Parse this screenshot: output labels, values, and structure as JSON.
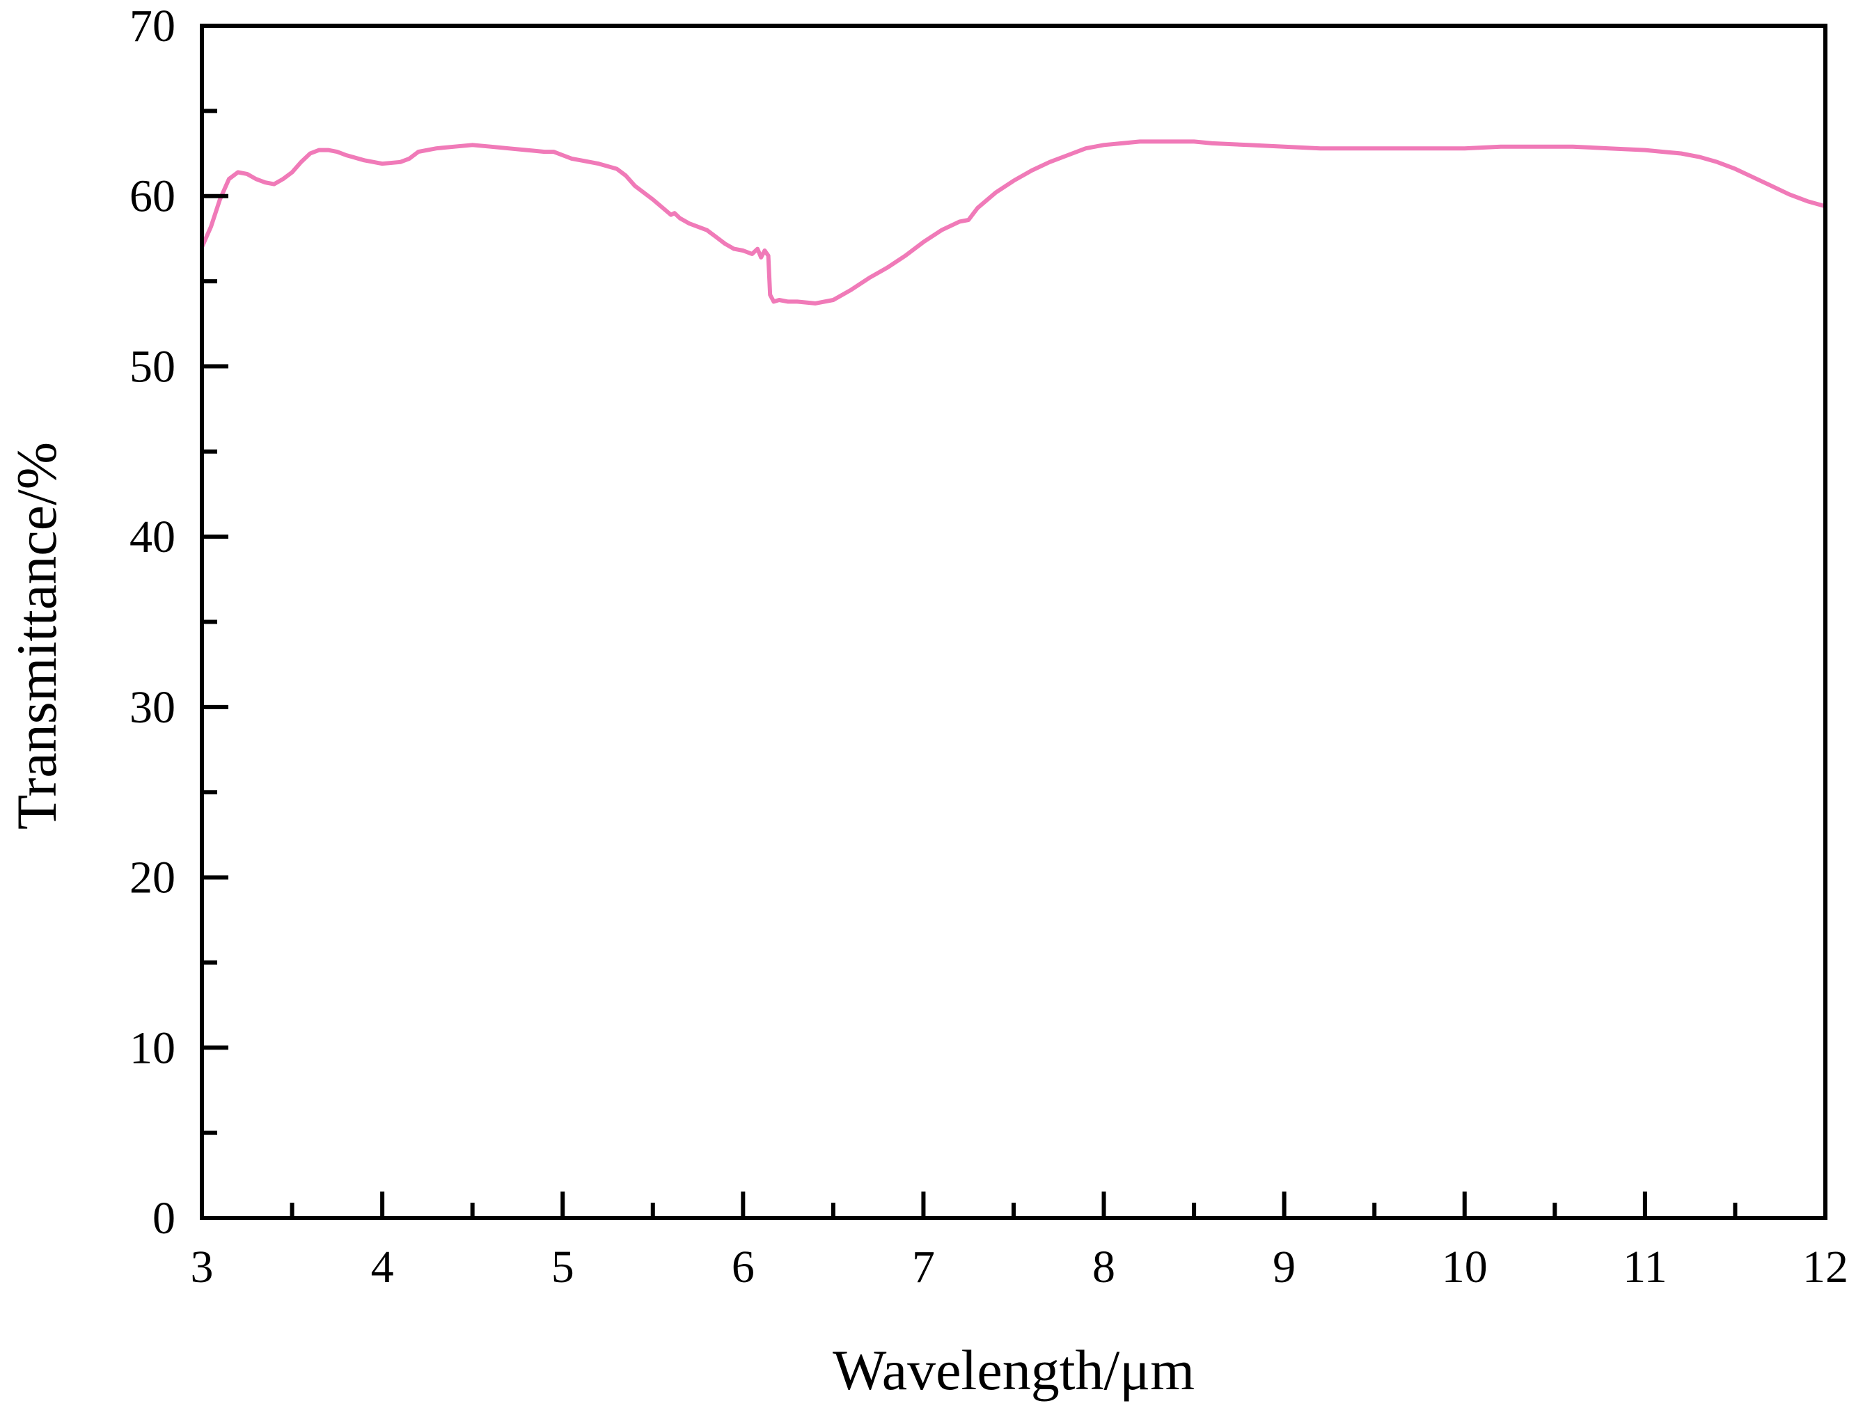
{
  "chart_data": {
    "type": "line",
    "title": "",
    "xlabel": "Wavelength/μm",
    "ylabel": "Transmittance/%",
    "xlim": [
      3,
      12
    ],
    "ylim": [
      0,
      70
    ],
    "x_ticks": [
      3,
      4,
      5,
      6,
      7,
      8,
      9,
      10,
      11,
      12
    ],
    "y_ticks": [
      0,
      10,
      20,
      30,
      40,
      50,
      60,
      70
    ],
    "x_tick_labels": [
      "3",
      "4",
      "5",
      "6",
      "7",
      "8",
      "9",
      "10",
      "11",
      "12"
    ],
    "y_tick_labels": [
      "0",
      "10",
      "20",
      "30",
      "40",
      "50",
      "60",
      "70"
    ],
    "grid": false,
    "legend": false,
    "series": [
      {
        "color": "#f07ab8",
        "x": [
          3.0,
          3.05,
          3.1,
          3.15,
          3.2,
          3.25,
          3.3,
          3.35,
          3.4,
          3.45,
          3.5,
          3.55,
          3.6,
          3.65,
          3.7,
          3.75,
          3.8,
          3.9,
          4.0,
          4.1,
          4.15,
          4.2,
          4.3,
          4.4,
          4.5,
          4.6,
          4.7,
          4.8,
          4.9,
          4.95,
          5.0,
          5.05,
          5.1,
          5.2,
          5.3,
          5.35,
          5.4,
          5.5,
          5.6,
          5.62,
          5.65,
          5.7,
          5.8,
          5.85,
          5.9,
          5.95,
          6.0,
          6.05,
          6.08,
          6.1,
          6.12,
          6.14,
          6.15,
          6.17,
          6.2,
          6.25,
          6.3,
          6.4,
          6.5,
          6.6,
          6.7,
          6.8,
          6.9,
          7.0,
          7.1,
          7.2,
          7.25,
          7.3,
          7.4,
          7.5,
          7.6,
          7.7,
          7.8,
          7.9,
          8.0,
          8.1,
          8.2,
          8.3,
          8.4,
          8.5,
          8.6,
          8.8,
          9.0,
          9.2,
          9.4,
          9.6,
          9.8,
          10.0,
          10.2,
          10.4,
          10.6,
          10.8,
          11.0,
          11.1,
          11.2,
          11.3,
          11.4,
          11.5,
          11.6,
          11.7,
          11.8,
          11.9,
          12.0
        ],
        "values": [
          57.0,
          58.2,
          59.8,
          61.0,
          61.4,
          61.3,
          61.0,
          60.8,
          60.7,
          61.0,
          61.4,
          62.0,
          62.5,
          62.7,
          62.7,
          62.6,
          62.4,
          62.1,
          61.9,
          62.0,
          62.2,
          62.6,
          62.8,
          62.9,
          63.0,
          62.9,
          62.8,
          62.7,
          62.6,
          62.6,
          62.4,
          62.2,
          62.1,
          61.9,
          61.6,
          61.2,
          60.6,
          59.8,
          58.9,
          59.0,
          58.7,
          58.4,
          58.0,
          57.6,
          57.2,
          56.9,
          56.8,
          56.6,
          56.9,
          56.4,
          56.8,
          56.5,
          54.2,
          53.8,
          53.9,
          53.8,
          53.8,
          53.7,
          53.9,
          54.5,
          55.2,
          55.8,
          56.5,
          57.3,
          58.0,
          58.5,
          58.6,
          59.3,
          60.2,
          60.9,
          61.5,
          62.0,
          62.4,
          62.8,
          63.0,
          63.1,
          63.2,
          63.2,
          63.2,
          63.2,
          63.1,
          63.0,
          62.9,
          62.8,
          62.8,
          62.8,
          62.8,
          62.8,
          62.9,
          62.9,
          62.9,
          62.8,
          62.7,
          62.6,
          62.5,
          62.3,
          62.0,
          61.6,
          61.1,
          60.6,
          60.1,
          59.7,
          59.4
        ]
      }
    ]
  }
}
